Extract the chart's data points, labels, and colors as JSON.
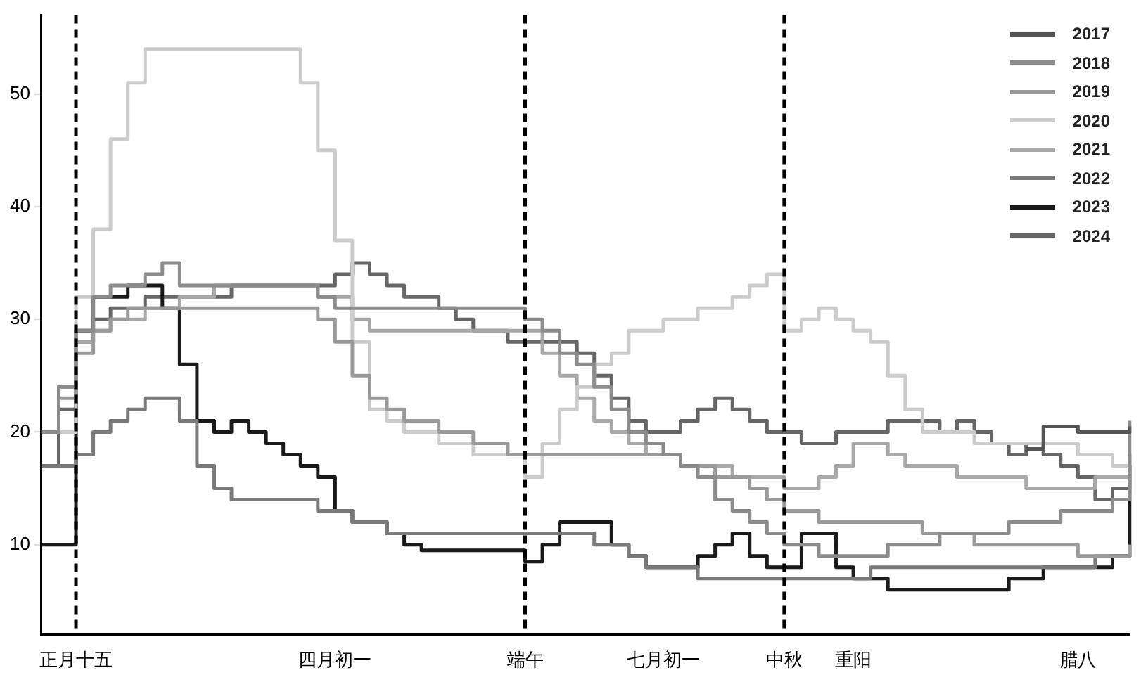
{
  "chart_data": {
    "type": "step",
    "categories": [
      null,
      null,
      "正月十五",
      null,
      null,
      null,
      null,
      null,
      null,
      null,
      null,
      null,
      null,
      null,
      null,
      null,
      null,
      "四月初一",
      null,
      null,
      null,
      null,
      null,
      null,
      null,
      null,
      null,
      null,
      "端午",
      null,
      null,
      null,
      null,
      null,
      null,
      null,
      "七月初一",
      null,
      null,
      null,
      null,
      null,
      null,
      "中秋",
      null,
      null,
      null,
      "重阳",
      null,
      null,
      null,
      null,
      null,
      null,
      null,
      null,
      null,
      null,
      null,
      null,
      "腊八",
      null,
      null,
      null
    ],
    "ylim": [
      2,
      57
    ],
    "yticks": [
      10,
      20,
      30,
      40,
      50
    ],
    "grid": false,
    "legend": "top right",
    "line_style": "solid",
    "marker": "none",
    "ref_lines": [
      {
        "axis": "x",
        "value": "正月十五",
        "color": "#000000",
        "line_style": "dashed"
      },
      {
        "axis": "x",
        "value": "端午",
        "color": "#000000",
        "line_style": "dashed"
      },
      {
        "axis": "x",
        "value": "中秋",
        "color": "#000000",
        "line_style": "dashed"
      }
    ],
    "series": [
      {
        "name": "2017",
        "color": "#555555",
        "values": [
          null,
          null,
          null,
          null,
          null,
          null,
          null,
          null,
          null,
          null,
          null,
          null,
          null,
          null,
          null,
          null,
          null,
          null,
          null,
          null,
          null,
          null,
          null,
          null,
          null,
          null,
          null,
          null,
          null,
          null,
          null,
          null,
          null,
          null,
          null,
          null,
          null,
          null,
          null,
          null,
          null,
          null,
          null,
          null,
          null,
          null,
          null,
          null,
          null,
          null,
          null,
          null,
          null,
          null,
          null,
          null,
          null,
          18.5,
          20.5,
          20.5,
          20,
          20,
          20,
          20.5
        ]
      },
      {
        "name": "2018",
        "color": "#8c8c8c",
        "values": [
          20,
          24,
          29,
          32,
          33,
          33,
          34,
          35,
          33,
          33,
          33,
          33,
          33,
          33,
          33,
          33,
          32,
          31,
          31,
          31,
          31,
          31,
          31,
          31,
          31,
          31,
          31,
          31,
          30,
          29,
          27,
          26,
          24,
          22,
          20,
          19,
          18,
          17,
          16,
          14,
          13,
          12,
          11,
          10,
          10,
          9,
          9,
          9,
          9,
          10,
          10,
          10,
          11,
          11,
          11,
          11,
          12,
          12,
          12,
          13,
          13,
          13,
          14,
          21
        ]
      },
      {
        "name": "2019",
        "color": "#9a9a9a",
        "values": [
          20,
          23,
          27,
          29,
          30,
          31,
          31,
          31,
          31,
          31,
          31,
          31,
          31,
          31,
          31,
          31,
          30,
          28,
          25,
          23,
          22,
          21,
          21,
          20,
          20,
          19,
          19,
          18,
          18,
          18,
          18,
          18,
          18,
          18,
          18,
          18,
          18,
          17,
          17,
          16,
          16,
          15,
          14,
          13,
          13,
          12,
          12,
          12,
          12,
          12,
          12,
          11,
          11,
          11,
          10,
          10,
          10,
          10,
          10,
          10,
          9,
          9,
          9,
          10
        ]
      },
      {
        "name": "2020",
        "color": "#cccccc",
        "values": [
          20,
          20,
          32,
          38,
          46,
          51,
          54,
          54,
          54,
          54,
          54,
          54,
          54,
          54,
          54,
          51,
          45,
          37,
          28,
          22,
          21,
          20,
          20,
          19,
          19,
          18,
          18,
          18,
          16,
          19,
          22,
          24,
          26,
          27,
          29,
          29,
          30,
          30,
          31,
          31,
          32,
          33,
          34,
          29,
          30,
          31,
          30,
          29,
          28,
          25,
          22,
          20,
          20,
          20,
          19,
          19,
          19,
          19,
          19,
          19,
          18,
          18,
          17,
          17
        ]
      },
      {
        "name": "2021",
        "color": "#a8a8a8",
        "values": [
          20,
          24,
          28,
          29,
          30,
          30,
          31,
          31,
          32,
          32,
          33,
          33,
          33,
          33,
          33,
          33,
          32,
          32,
          30,
          29,
          29,
          29,
          29,
          29,
          29,
          29,
          29,
          29,
          29,
          27,
          25,
          23,
          21,
          20,
          19,
          18,
          18,
          17,
          17,
          17,
          16,
          16,
          16,
          15,
          15,
          16,
          17,
          19,
          19,
          18,
          17,
          17,
          17,
          16,
          16,
          16,
          16,
          15,
          15,
          15,
          15,
          16,
          16,
          17
        ]
      },
      {
        "name": "2022",
        "color": "#7a7a7a",
        "values": [
          17,
          17,
          18,
          20,
          21,
          22,
          23,
          23,
          21,
          17,
          15,
          14,
          14,
          14,
          14,
          14,
          13,
          13,
          12,
          12,
          11,
          11,
          11,
          11,
          11,
          11,
          11,
          11,
          11,
          11,
          11,
          11,
          10,
          10,
          9,
          8,
          8,
          8,
          7,
          7,
          7,
          7,
          7,
          7,
          7,
          7,
          7,
          7,
          8,
          8,
          8,
          8,
          8,
          8,
          8,
          8,
          8,
          8,
          8,
          8,
          8,
          9,
          9,
          10
        ]
      },
      {
        "name": "2023",
        "color": "#1a1a1a",
        "values": [
          10,
          10,
          29,
          32,
          32,
          33,
          33,
          31,
          26,
          21,
          20,
          21,
          20,
          19,
          18,
          17,
          16,
          13,
          12,
          12,
          11,
          10,
          9.5,
          9.5,
          9.5,
          9.5,
          9.5,
          9.5,
          8.5,
          10,
          12,
          12,
          12,
          10,
          9,
          8,
          8,
          8,
          9,
          10,
          11,
          9,
          8,
          8,
          11,
          11,
          8,
          7,
          7,
          6,
          6,
          6,
          6,
          6,
          6,
          6,
          7,
          7,
          8,
          8,
          8,
          8,
          9,
          17
        ]
      },
      {
        "name": "2024",
        "color": "#666666",
        "values": [
          17,
          22,
          28,
          30,
          31,
          31,
          32,
          32,
          32,
          32,
          32,
          33,
          33,
          33,
          33,
          33,
          33,
          34,
          35,
          34,
          33,
          32,
          32,
          31,
          30,
          29,
          29,
          28,
          28,
          28,
          28,
          27,
          25,
          23,
          21,
          20,
          20,
          21,
          22,
          23,
          22,
          21,
          20,
          20,
          19,
          19,
          20,
          20,
          20,
          21,
          21,
          21,
          20,
          21,
          20,
          19,
          18,
          19,
          18,
          17,
          16,
          14,
          15,
          18
        ]
      }
    ]
  }
}
